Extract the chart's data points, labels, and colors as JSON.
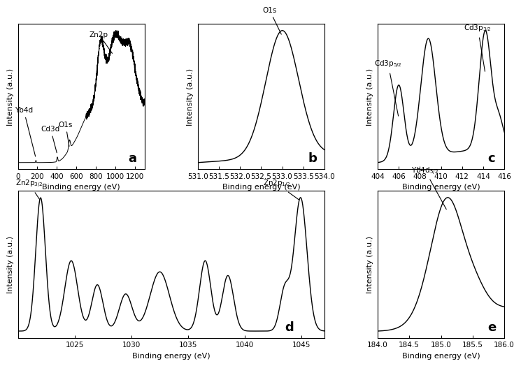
{
  "fig_width": 7.56,
  "fig_height": 4.78,
  "background_color": "#ffffff",
  "panels": {
    "a": {
      "label": "a",
      "xlabel": "Binding energy (eV)",
      "ylabel": "Intensity (a.u.)",
      "xlim": [
        0,
        1300
      ],
      "xticks": [
        0,
        200,
        400,
        600,
        800,
        1000,
        1200
      ]
    },
    "b": {
      "label": "b",
      "xlabel": "Binding energy (eV)",
      "ylabel": "Intensity (a.u.)",
      "xlim": [
        531.0,
        534.0
      ],
      "xticks": [
        531.0,
        531.5,
        532.0,
        532.5,
        533.0,
        533.5,
        534.0
      ]
    },
    "c": {
      "label": "c",
      "xlabel": "Binding energy (eV)",
      "ylabel": "Intensity (a.u.)",
      "xlim": [
        404,
        416
      ],
      "xticks": [
        404,
        406,
        408,
        410,
        412,
        414,
        416
      ]
    },
    "d": {
      "label": "d",
      "xlabel": "Binding energy (eV)",
      "ylabel": "Intensity (a.u.)",
      "xlim": [
        1020,
        1047
      ],
      "xticks": [
        1025,
        1030,
        1035,
        1040,
        1045
      ]
    },
    "e": {
      "label": "e",
      "xlabel": "Binding energy (eV)",
      "ylabel": "Intensity (a.u.)",
      "xlim": [
        184.0,
        186.0
      ],
      "xticks": [
        184.0,
        184.5,
        185.0,
        185.5,
        186.0
      ]
    }
  }
}
